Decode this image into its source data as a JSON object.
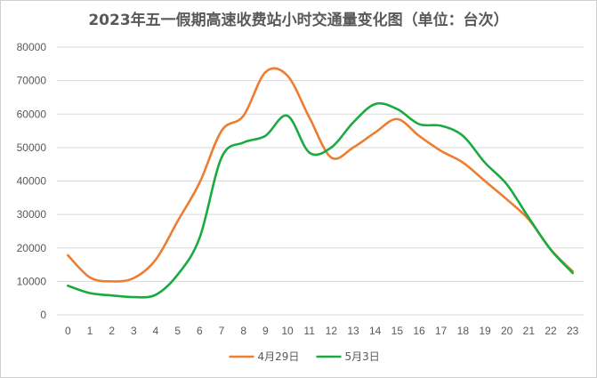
{
  "chart_data": {
    "type": "line",
    "title": "2023年五一假期高速收费站小时交通量变化图（单位：台次）",
    "xlabel": "",
    "ylabel": "",
    "x": [
      0,
      1,
      2,
      3,
      4,
      5,
      6,
      7,
      8,
      9,
      10,
      11,
      12,
      13,
      14,
      15,
      16,
      17,
      18,
      19,
      20,
      21,
      22,
      23
    ],
    "ylim": [
      0,
      80000
    ],
    "yticks": [
      0,
      10000,
      20000,
      30000,
      40000,
      50000,
      60000,
      70000,
      80000
    ],
    "grid": "horizontal",
    "legend_position": "bottom",
    "smooth": true,
    "series": [
      {
        "name": "4月29日",
        "color": "#ED7D31",
        "values": [
          17800,
          11200,
          10000,
          11000,
          16500,
          28000,
          39500,
          55000,
          59500,
          72500,
          71500,
          59000,
          47000,
          50000,
          54500,
          58500,
          53500,
          49000,
          45500,
          40000,
          34500,
          28500,
          19500,
          13000
        ]
      },
      {
        "name": "5月3日",
        "color": "#1AAB40",
        "values": [
          8700,
          6500,
          5800,
          5300,
          6000,
          12000,
          23000,
          47000,
          51500,
          53500,
          59500,
          48500,
          50000,
          57500,
          63000,
          61500,
          57000,
          56500,
          53500,
          45500,
          39000,
          29000,
          19500,
          12500
        ]
      }
    ]
  }
}
